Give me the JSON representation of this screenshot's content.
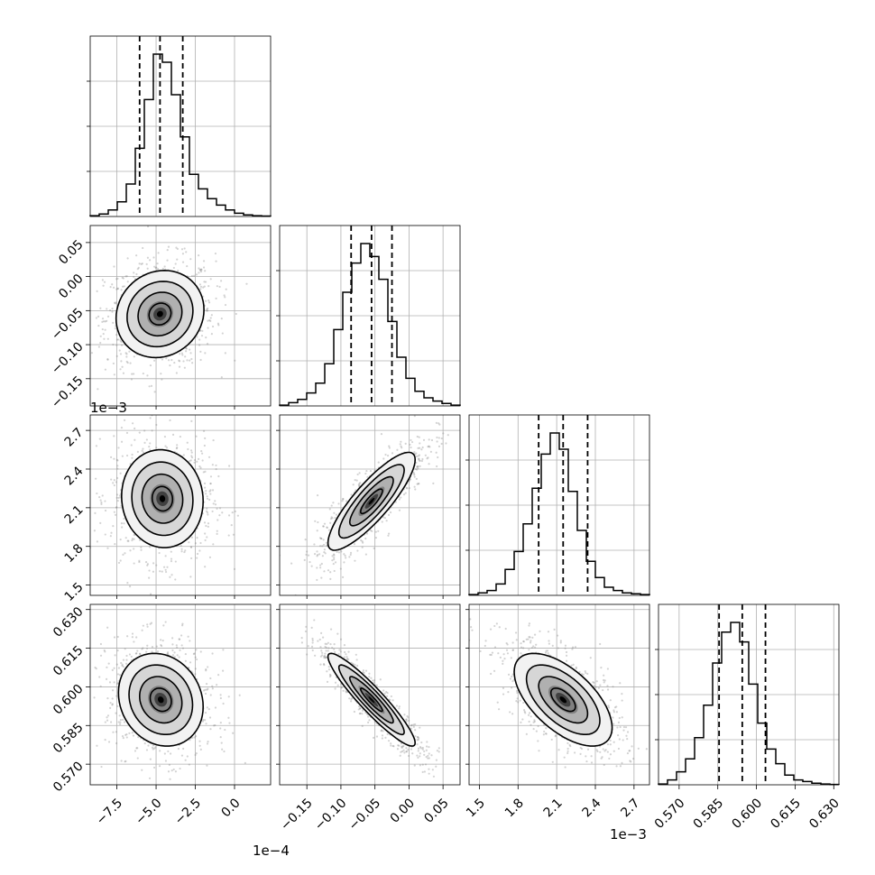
{
  "chart_data": {
    "type": "corner",
    "parameters": [
      {
        "id": "p0",
        "range": [
          -9.2,
          2.3
        ],
        "ticks": [
          -7.5,
          -5.0,
          -2.5,
          0.0
        ],
        "tick_labels": [
          "−7.5",
          "−5.0",
          "−2.5",
          "0.0"
        ],
        "offset_label": "1e−4",
        "quantiles": [
          -6.05,
          -4.75,
          -3.3
        ],
        "histogram": {
          "start": -9.2,
          "bin_width": 0.575,
          "counts": [
            0.5,
            1.5,
            4,
            9,
            20,
            42,
            72,
            100,
            95,
            75,
            49,
            26,
            17,
            11,
            7,
            4,
            2,
            1,
            0.5,
            0.3
          ]
        }
      },
      {
        "id": "p1",
        "range": [
          -0.19,
          0.075
        ],
        "ticks": [
          -0.15,
          -0.1,
          -0.05,
          0.0,
          0.05
        ],
        "tick_labels": [
          "−0.15",
          "−0.10",
          "−0.05",
          "0.00",
          "0.05"
        ],
        "offset_label": "",
        "quantiles": [
          -0.085,
          -0.055,
          -0.025
        ],
        "histogram": {
          "start": -0.19,
          "bin_width": 0.01325,
          "counts": [
            0.5,
            2,
            4,
            8,
            14,
            26,
            47,
            70,
            88,
            100,
            92,
            78,
            52,
            30,
            17,
            9,
            5,
            3,
            1.5,
            0.5
          ]
        }
      },
      {
        "id": "p2",
        "range": [
          1.42,
          2.82
        ],
        "ticks": [
          1.5,
          1.8,
          2.1,
          2.4,
          2.7
        ],
        "tick_labels": [
          "1.5",
          "1.8",
          "2.1",
          "2.4",
          "2.7"
        ],
        "offset_label": "1e−3",
        "quantiles": [
          1.96,
          2.15,
          2.34
        ],
        "histogram": {
          "start": 1.42,
          "bin_width": 0.07,
          "counts": [
            0.5,
            1.5,
            3,
            7,
            16,
            27,
            44,
            66,
            87,
            100,
            90,
            64,
            40,
            21,
            11,
            5,
            3,
            1.5,
            1,
            0.5
          ]
        }
      },
      {
        "id": "p3",
        "range": [
          0.562,
          0.632
        ],
        "ticks": [
          0.57,
          0.585,
          0.6,
          0.615,
          0.63
        ],
        "tick_labels": [
          "0.570",
          "0.585",
          "0.600",
          "0.615",
          "0.630"
        ],
        "offset_label": "",
        "quantiles": [
          0.5855,
          0.5945,
          0.6035
        ],
        "histogram": {
          "start": 0.562,
          "bin_width": 0.0035,
          "counts": [
            0.5,
            3,
            8,
            16,
            29,
            49,
            75,
            94,
            100,
            88,
            62,
            38,
            22,
            13,
            6,
            3,
            2,
            1,
            0.5,
            0.2
          ]
        }
      }
    ],
    "panels_2d": [
      {
        "x": 0,
        "y": 1,
        "center": [
          -4.75,
          -0.055
        ],
        "sigma": [
          1.4,
          0.032
        ],
        "corr": 0.1
      },
      {
        "x": 0,
        "y": 2,
        "center": [
          -4.6,
          2.17
        ],
        "sigma": [
          1.3,
          0.19
        ],
        "corr": -0.05
      },
      {
        "x": 1,
        "y": 2,
        "center": [
          -0.055,
          2.15
        ],
        "sigma": [
          0.032,
          0.19
        ],
        "corr": 0.85
      },
      {
        "x": 0,
        "y": 3,
        "center": [
          -4.7,
          0.595
        ],
        "sigma": [
          1.35,
          0.009
        ],
        "corr": -0.15
      },
      {
        "x": 1,
        "y": 3,
        "center": [
          -0.055,
          0.595
        ],
        "sigma": [
          0.032,
          0.009
        ],
        "corr": -0.93
      },
      {
        "x": 2,
        "y": 3,
        "center": [
          2.15,
          0.595
        ],
        "sigma": [
          0.19,
          0.009
        ],
        "corr": -0.6
      }
    ],
    "grid": true,
    "quantile_style": "dashed",
    "contour_levels": [
      0.5,
      1.0,
      1.5,
      2.0
    ],
    "colors": {
      "line": "#000000",
      "grid": "#b0b0b0",
      "scatter": "#808080",
      "background": "#ffffff"
    }
  }
}
